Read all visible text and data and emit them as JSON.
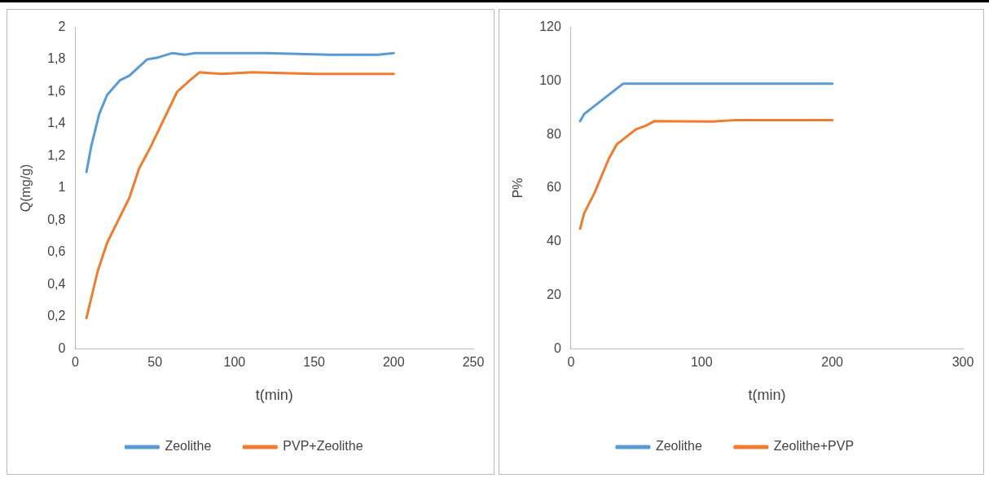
{
  "chart_data": [
    {
      "type": "line",
      "xlabel": "t(min)",
      "ylabel": "Q(mg/g)",
      "xlim": [
        0,
        250
      ],
      "xticks": [
        0,
        50,
        100,
        150,
        200,
        250
      ],
      "ylim": [
        0,
        2
      ],
      "yticks": [
        0,
        {
          "value": 0.2,
          "label": "0,2"
        },
        {
          "value": 0.4,
          "label": "0,4"
        },
        {
          "value": 0.6,
          "label": "0,6"
        },
        {
          "value": 0.8,
          "label": "0,8"
        },
        1,
        {
          "value": 1.2,
          "label": "1,2"
        },
        {
          "value": 1.4,
          "label": "1,4"
        },
        {
          "value": 1.6,
          "label": "1,6"
        },
        {
          "value": 1.8,
          "label": "1,8"
        },
        2
      ],
      "grid": false,
      "legend": "bottom",
      "marker": "none",
      "line_style": "solid",
      "series": [
        {
          "name": "Zeolithe",
          "color": "#5b9bd5",
          "x": [
            7,
            10,
            15,
            20,
            28,
            34,
            45,
            51,
            61,
            69,
            75,
            120,
            160,
            190,
            200
          ],
          "values": [
            1.1,
            1.26,
            1.46,
            1.58,
            1.67,
            1.7,
            1.8,
            1.81,
            1.84,
            1.83,
            1.84,
            1.84,
            1.83,
            1.83,
            1.84
          ]
        },
        {
          "name": "PVP+Zeolithe",
          "color": "#ed7d31",
          "x": [
            7,
            14,
            20,
            34,
            40,
            47,
            64,
            72,
            78,
            92,
            111,
            150,
            200
          ],
          "values": [
            0.19,
            0.48,
            0.66,
            0.94,
            1.12,
            1.25,
            1.6,
            1.67,
            1.72,
            1.71,
            1.72,
            1.71,
            1.71
          ]
        }
      ]
    },
    {
      "type": "line",
      "xlabel": "t(min)",
      "ylabel": "P%",
      "xlim": [
        0,
        300
      ],
      "xticks": [
        0,
        100,
        200,
        300
      ],
      "ylim": [
        0,
        120
      ],
      "yticks": [
        0,
        20,
        40,
        60,
        80,
        100,
        120
      ],
      "grid": false,
      "legend": "bottom",
      "marker": "none",
      "line_style": "solid",
      "series": [
        {
          "name": "Zeolithe",
          "color": "#5b9bd5",
          "x": [
            7,
            10,
            40,
            200
          ],
          "values": [
            85,
            87.6,
            99,
            99
          ]
        },
        {
          "name": "Zeolithe+PVP",
          "color": "#ed7d31",
          "x": [
            7,
            10,
            18,
            29,
            35,
            50,
            57,
            64,
            108,
            127,
            200
          ],
          "values": [
            44.8,
            50.5,
            58.2,
            71,
            76.3,
            82,
            83.2,
            85,
            84.8,
            85.4,
            85.4
          ]
        }
      ]
    }
  ]
}
